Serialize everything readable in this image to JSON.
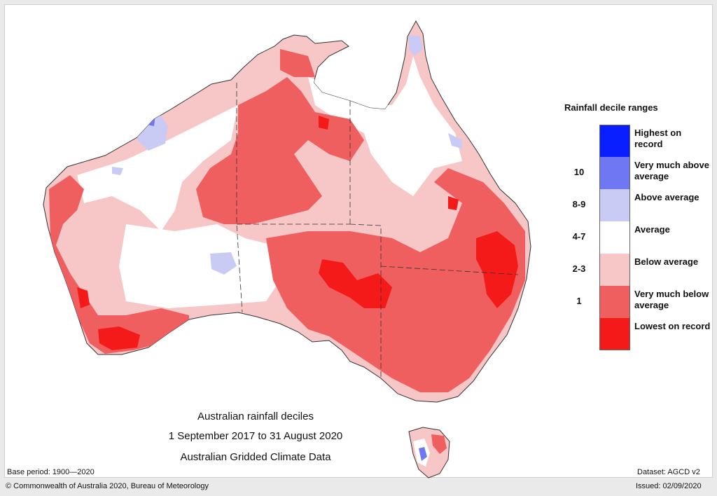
{
  "map": {
    "title_line1": "Australian rainfall deciles",
    "title_line2": "1 September 2017 to 31 August 2020",
    "title_line3": "Australian Gridded Climate Data",
    "base_period": "Base period: 1900—2020",
    "dataset": "Dataset: AGCD v2",
    "copyright": "© Commonwealth of Australia 2020, Bureau of Meteorology",
    "issued": "Issued: 02/09/2020"
  },
  "legend": {
    "title": "Rainfall decile ranges",
    "items": [
      {
        "decile": "",
        "label": "Highest on record",
        "color": "#0a1fff"
      },
      {
        "decile": "10",
        "label": "Very much above average",
        "color": "#6f78f2"
      },
      {
        "decile": "8-9",
        "label": "Above average",
        "color": "#c9cbf5"
      },
      {
        "decile": "4-7",
        "label": "Average",
        "color": "#ffffff"
      },
      {
        "decile": "2-3",
        "label": "Below average",
        "color": "#f7c6c6"
      },
      {
        "decile": "1",
        "label": "Very much below average",
        "color": "#ef5f5f"
      },
      {
        "decile": "",
        "label": "Lowest on record",
        "color": "#f51a1a"
      }
    ]
  }
}
